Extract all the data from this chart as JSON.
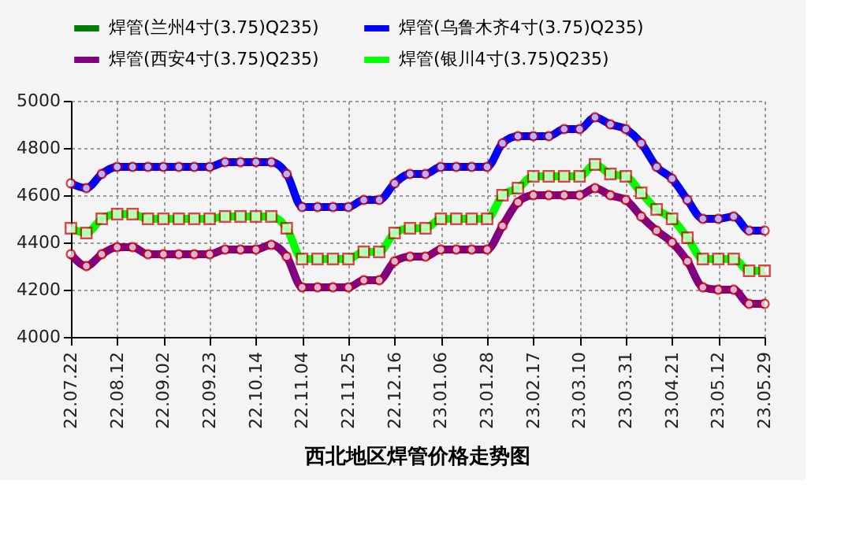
{
  "chart_data": {
    "type": "line",
    "title": "西北地区焊管价格走势图",
    "categories": [
      "22.07.22",
      null,
      null,
      "22.08.12",
      null,
      null,
      "22.09.02",
      null,
      null,
      "22.09.23",
      null,
      null,
      "22.10.14",
      null,
      null,
      "22.11.04",
      null,
      null,
      "22.11.25",
      null,
      null,
      "22.12.16",
      null,
      null,
      "23.01.06",
      null,
      null,
      "23.01.28",
      null,
      null,
      "23.02.17",
      null,
      null,
      "23.03.10",
      null,
      null,
      "23.03.31",
      null,
      null,
      "23.04.21",
      null,
      null,
      "23.05.12",
      null,
      null,
      "23.05.29"
    ],
    "series": [
      {
        "name": "焊管(兰州4寸(3.75)Q235)",
        "color": "#008000",
        "marker": "circle",
        "values": [
          null,
          null,
          null,
          null,
          null,
          null,
          null,
          null,
          null,
          null,
          null,
          null,
          null,
          null,
          null,
          null,
          null,
          null,
          null,
          null,
          null,
          null,
          null,
          null,
          null,
          null,
          null,
          null,
          null,
          null,
          null,
          null,
          null,
          null,
          null,
          null,
          null,
          null,
          null,
          null,
          null,
          null,
          null,
          null,
          null,
          null
        ]
      },
      {
        "name": "焊管(乌鲁木齐4寸(3.75)Q235)",
        "color": "#0000ff",
        "marker": "circle",
        "values": [
          4650,
          4630,
          4690,
          4720,
          4720,
          4720,
          4720,
          4720,
          4720,
          4720,
          4740,
          4740,
          4740,
          4740,
          4690,
          4550,
          4550,
          4550,
          4550,
          4580,
          4580,
          4650,
          4690,
          4690,
          4720,
          4720,
          4720,
          4720,
          4820,
          4850,
          4850,
          4850,
          4880,
          4880,
          4930,
          4900,
          4880,
          4820,
          4720,
          4670,
          4580,
          4500,
          4500,
          4510,
          4450,
          4450
        ]
      },
      {
        "name": "焊管(西安4寸(3.75)Q235)",
        "color": "#800080",
        "marker": "circle",
        "values": [
          4350,
          4300,
          4350,
          4380,
          4380,
          4350,
          4350,
          4350,
          4350,
          4350,
          4370,
          4370,
          4370,
          4390,
          4340,
          4210,
          4210,
          4210,
          4210,
          4240,
          4240,
          4320,
          4340,
          4340,
          4370,
          4370,
          4370,
          4370,
          4470,
          4570,
          4600,
          4600,
          4600,
          4600,
          4630,
          4600,
          4580,
          4510,
          4450,
          4400,
          4320,
          4210,
          4200,
          4200,
          4140,
          4140
        ]
      },
      {
        "name": "焊管(银川4寸(3.75)Q235)",
        "color": "#00ff00",
        "marker": "square",
        "values": [
          4460,
          4440,
          4500,
          4520,
          4520,
          4500,
          4500,
          4500,
          4500,
          4500,
          4510,
          4510,
          4510,
          4510,
          4460,
          4330,
          4330,
          4330,
          4330,
          4360,
          4360,
          4440,
          4460,
          4460,
          4500,
          4500,
          4500,
          4500,
          4600,
          4630,
          4680,
          4680,
          4680,
          4680,
          4730,
          4690,
          4680,
          4610,
          4540,
          4500,
          4420,
          4330,
          4330,
          4330,
          4280,
          4280
        ]
      }
    ],
    "ylim": [
      4000,
      5000
    ],
    "yticks": [
      4000,
      4200,
      4400,
      4600,
      4800,
      5000
    ],
    "grid": true,
    "legend": "top",
    "line_style": "solid"
  }
}
